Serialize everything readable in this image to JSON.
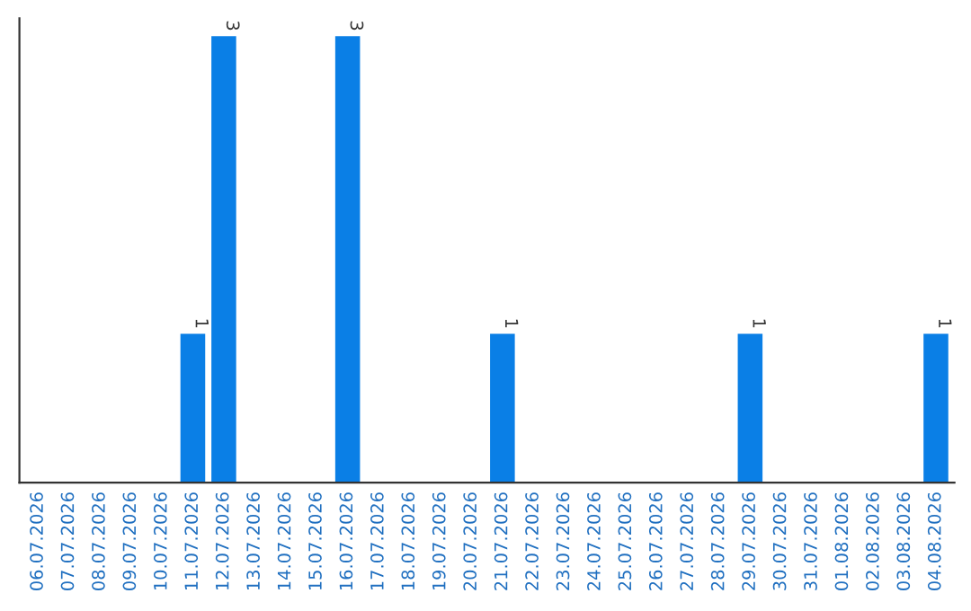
{
  "chart_data": {
    "type": "bar",
    "categories": [
      "06.07.2026",
      "07.07.2026",
      "08.07.2026",
      "09.07.2026",
      "10.07.2026",
      "11.07.2026",
      "12.07.2026",
      "13.07.2026",
      "14.07.2026",
      "15.07.2026",
      "16.07.2026",
      "17.07.2026",
      "18.07.2026",
      "19.07.2026",
      "20.07.2026",
      "21.07.2026",
      "22.07.2026",
      "23.07.2026",
      "24.07.2026",
      "25.07.2026",
      "26.07.2026",
      "27.07.2026",
      "28.07.2026",
      "29.07.2026",
      "30.07.2026",
      "31.07.2026",
      "01.08.2026",
      "02.08.2026",
      "03.08.2026",
      "04.08.2026"
    ],
    "values": [
      0,
      0,
      0,
      0,
      0,
      1,
      3,
      0,
      0,
      0,
      3,
      0,
      0,
      0,
      0,
      1,
      0,
      0,
      0,
      0,
      0,
      0,
      0,
      1,
      0,
      0,
      0,
      0,
      0,
      1
    ],
    "value_labels": [
      null,
      null,
      null,
      null,
      null,
      "1",
      "3",
      null,
      null,
      null,
      "3",
      null,
      null,
      null,
      null,
      "1",
      null,
      null,
      null,
      null,
      null,
      null,
      null,
      "1",
      null,
      null,
      null,
      null,
      null,
      "1"
    ],
    "color": "#0a7fe6",
    "tick_labels": "x",
    "grid": false,
    "legend": false
  }
}
